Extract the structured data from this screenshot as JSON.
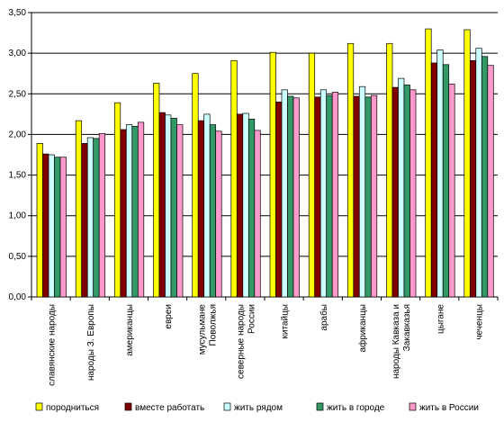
{
  "chart_data": {
    "type": "bar",
    "title": "",
    "xlabel": "",
    "ylabel": "",
    "ylim": [
      0,
      3.5
    ],
    "y_ticks": [
      "0,00",
      "0,50",
      "1,00",
      "1,50",
      "2,00",
      "2,50",
      "3,00",
      "3,50"
    ],
    "grid": "horizontal",
    "legend_position": "bottom",
    "categories": [
      [
        "славянские народы"
      ],
      [
        "народы З. Европы"
      ],
      [
        "американцы"
      ],
      [
        "евреи"
      ],
      [
        "мусульмане",
        "Поволжья"
      ],
      [
        "северные народы",
        "России"
      ],
      [
        "китайцы"
      ],
      [
        "арабы"
      ],
      [
        "африканцы"
      ],
      [
        "народы Кавказа и",
        "Закавказья"
      ],
      [
        "цыгане"
      ],
      [
        "чеченцы"
      ]
    ],
    "series": [
      {
        "name": "породниться",
        "color": "#ffff00",
        "values": [
          1.89,
          2.17,
          2.39,
          2.63,
          2.75,
          2.91,
          3.01,
          3.0,
          3.12,
          3.12,
          3.3,
          3.29
        ]
      },
      {
        "name": "вместе работать",
        "color": "#800000",
        "values": [
          1.76,
          1.89,
          2.06,
          2.27,
          2.17,
          2.25,
          2.4,
          2.46,
          2.47,
          2.58,
          2.88,
          2.91
        ]
      },
      {
        "name": "жить рядом",
        "color": "#ccffff",
        "values": [
          1.75,
          1.96,
          2.12,
          2.24,
          2.25,
          2.26,
          2.55,
          2.55,
          2.59,
          2.69,
          3.04,
          3.06
        ]
      },
      {
        "name": "жить в городе",
        "color": "#339966",
        "values": [
          1.72,
          1.95,
          2.1,
          2.2,
          2.12,
          2.19,
          2.47,
          2.48,
          2.46,
          2.61,
          2.86,
          2.96
        ]
      },
      {
        "name": "жить в России",
        "color": "#ff99cc",
        "values": [
          1.72,
          2.01,
          2.15,
          2.12,
          2.04,
          2.05,
          2.45,
          2.52,
          2.48,
          2.55,
          2.62,
          2.85
        ]
      }
    ]
  }
}
